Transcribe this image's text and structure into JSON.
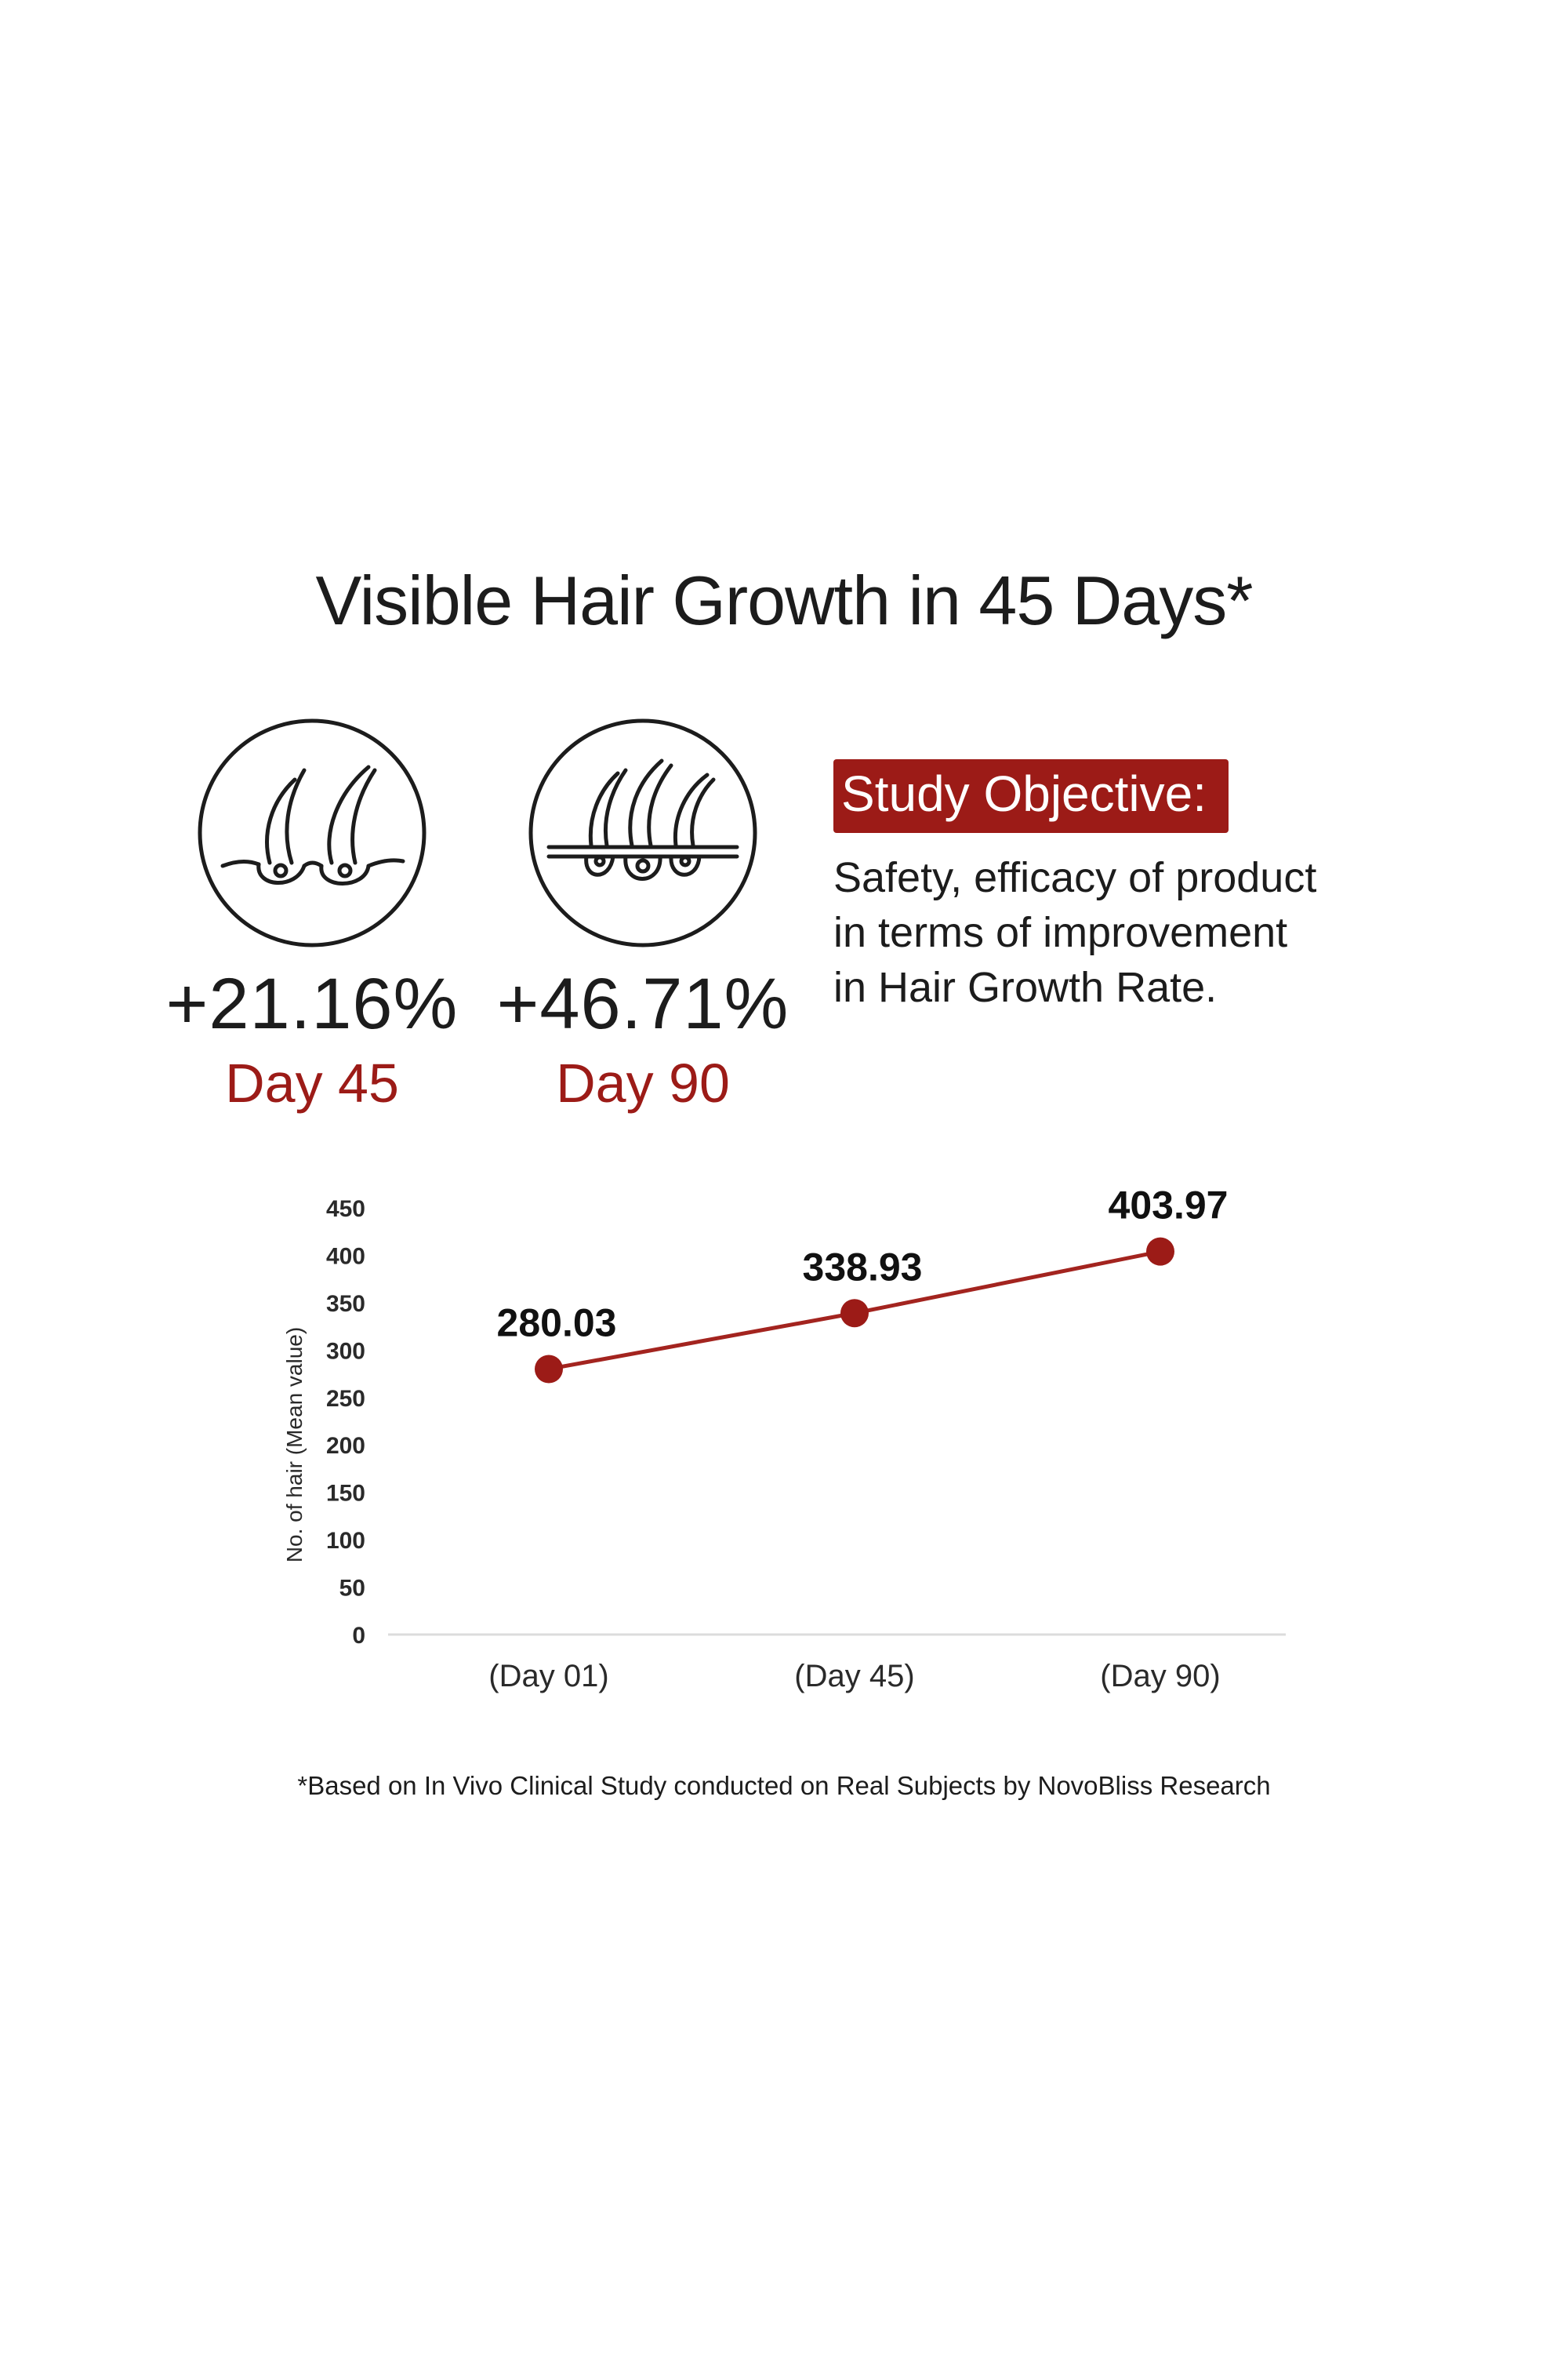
{
  "page_title": "Visible Hair Growth in 45 Days*",
  "colors": {
    "accent": "#9c1b17",
    "line": "#a3241f",
    "text": "#1c1c1c",
    "axis": "#dcdcdc"
  },
  "stats": [
    {
      "icon": "hair-follicle-icon",
      "value": "+21.16%",
      "day": "Day 45"
    },
    {
      "icon": "hair-follicle-triple-icon",
      "value": "+46.71%",
      "day": "Day 90"
    }
  ],
  "study_objective": {
    "label": "Study Objective:",
    "lines": [
      "Safety, efficacy of product",
      "in terms of improvement",
      "in Hair Growth Rate."
    ]
  },
  "chart_data": {
    "type": "line",
    "title": "",
    "xlabel": "",
    "ylabel": "No. of hair (Mean value)",
    "ylim": [
      0,
      450
    ],
    "yticks": [
      0,
      50,
      100,
      150,
      200,
      250,
      300,
      350,
      400,
      450
    ],
    "categories": [
      "(Day 01)",
      "(Day 45)",
      "(Day 90)"
    ],
    "series": [
      {
        "values": [
          280.03,
          338.93,
          403.97
        ],
        "labels": [
          "280.03",
          "338.93",
          "403.97"
        ]
      }
    ],
    "grid": false,
    "legend": "none"
  },
  "footnote": "*Based on In Vivo Clinical Study conducted on Real Subjects by NovoBliss Research"
}
